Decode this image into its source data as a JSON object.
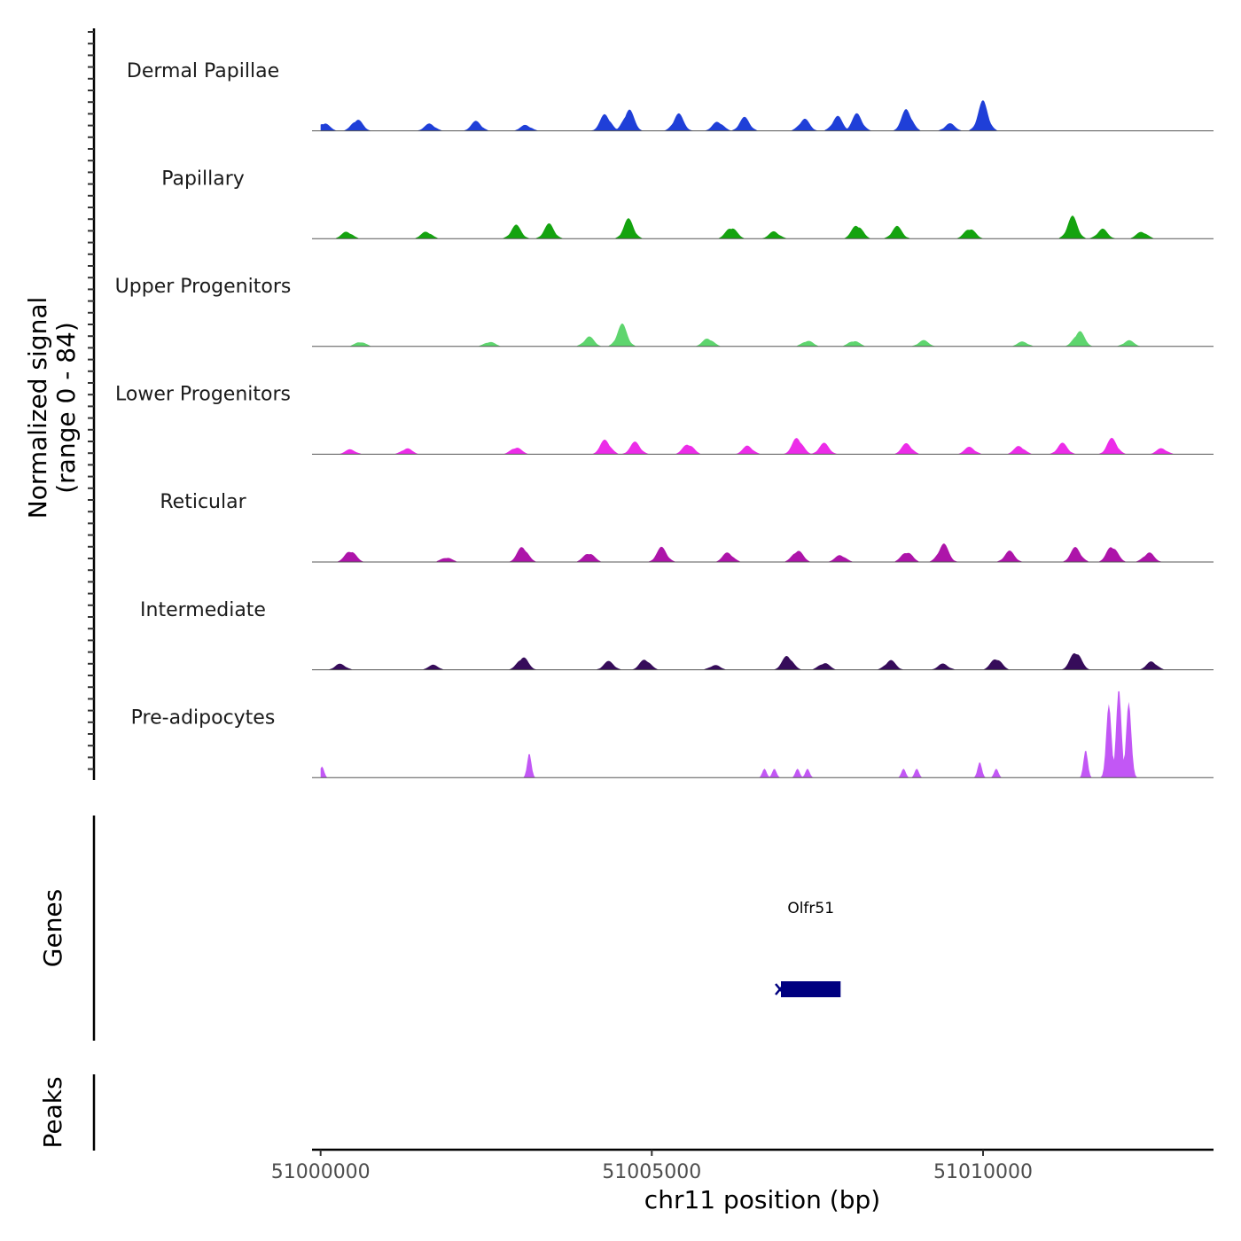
{
  "chart_data": {
    "type": "area",
    "title": "",
    "ylabel_line1": "Normalized signal",
    "ylabel_line2": "(range 0 - 84)",
    "xlabel": "chr11 position (bp)",
    "xlim": [
      50999870,
      51013480
    ],
    "ylim": [
      0,
      84
    ],
    "xticks": [
      51000000,
      51005000,
      51010000
    ],
    "xtick_labels": [
      "51000000",
      "51005000",
      "51010000"
    ],
    "tracks": [
      {
        "name": "Dermal Papillae",
        "color": "#1f3fd8",
        "peaks": [
          [
            51000050,
            7
          ],
          [
            51000550,
            10
          ],
          [
            51001650,
            6
          ],
          [
            51002350,
            8
          ],
          [
            51003100,
            5
          ],
          [
            51004300,
            14
          ],
          [
            51004650,
            18
          ],
          [
            51005400,
            14
          ],
          [
            51006000,
            8
          ],
          [
            51006400,
            11
          ],
          [
            51007300,
            10
          ],
          [
            51007800,
            12
          ],
          [
            51008100,
            14
          ],
          [
            51008850,
            18
          ],
          [
            51009500,
            6
          ],
          [
            51010000,
            24
          ]
        ]
      },
      {
        "name": "Papillary",
        "color": "#14a30f",
        "peaks": [
          [
            51000400,
            6
          ],
          [
            51001600,
            6
          ],
          [
            51002950,
            11
          ],
          [
            51003450,
            12
          ],
          [
            51004650,
            16
          ],
          [
            51006200,
            10
          ],
          [
            51006850,
            6
          ],
          [
            51008100,
            12
          ],
          [
            51008700,
            10
          ],
          [
            51009800,
            9
          ],
          [
            51011350,
            18
          ],
          [
            51011800,
            8
          ],
          [
            51012400,
            6
          ]
        ]
      },
      {
        "name": "Upper Progenitors",
        "color": "#5ed56e",
        "peaks": [
          [
            51000600,
            4
          ],
          [
            51002550,
            4
          ],
          [
            51004050,
            8
          ],
          [
            51004550,
            18
          ],
          [
            51005850,
            7
          ],
          [
            51007350,
            5
          ],
          [
            51008050,
            5
          ],
          [
            51009100,
            5
          ],
          [
            51010600,
            4
          ],
          [
            51011450,
            13
          ],
          [
            51012200,
            5
          ]
        ]
      },
      {
        "name": "Lower Progenitors",
        "color": "#ec2ce8",
        "peaks": [
          [
            51000450,
            4
          ],
          [
            51001300,
            5
          ],
          [
            51002950,
            6
          ],
          [
            51004300,
            12
          ],
          [
            51004750,
            10
          ],
          [
            51005550,
            9
          ],
          [
            51006450,
            7
          ],
          [
            51007200,
            14
          ],
          [
            51007600,
            9
          ],
          [
            51008850,
            9
          ],
          [
            51009800,
            6
          ],
          [
            51010550,
            7
          ],
          [
            51011200,
            9
          ],
          [
            51011950,
            13
          ],
          [
            51012700,
            5
          ]
        ]
      },
      {
        "name": "Reticular",
        "color": "#ad14a9",
        "peaks": [
          [
            51000450,
            10
          ],
          [
            51001900,
            4
          ],
          [
            51003050,
            13
          ],
          [
            51004050,
            8
          ],
          [
            51005150,
            12
          ],
          [
            51006150,
            8
          ],
          [
            51007200,
            10
          ],
          [
            51007850,
            6
          ],
          [
            51008850,
            9
          ],
          [
            51009400,
            15
          ],
          [
            51010400,
            9
          ],
          [
            51011400,
            12
          ],
          [
            51011950,
            14
          ],
          [
            51012500,
            8
          ]
        ]
      },
      {
        "name": "Intermediate",
        "color": "#360c5a",
        "peaks": [
          [
            51000300,
            5
          ],
          [
            51001700,
            4
          ],
          [
            51003050,
            11
          ],
          [
            51004350,
            7
          ],
          [
            51004900,
            9
          ],
          [
            51005950,
            4
          ],
          [
            51007050,
            12
          ],
          [
            51007600,
            6
          ],
          [
            51008600,
            8
          ],
          [
            51009400,
            5
          ],
          [
            51010200,
            10
          ],
          [
            51011400,
            16
          ],
          [
            51012550,
            7
          ]
        ]
      },
      {
        "name": "Pre-adipocytes",
        "color": "#c257f5",
        "peaks": [
          [
            51000020,
            10
          ],
          [
            51003150,
            22
          ],
          [
            51006700,
            8
          ],
          [
            51006850,
            8
          ],
          [
            51007200,
            8
          ],
          [
            51007350,
            8
          ],
          [
            51008800,
            8
          ],
          [
            51009000,
            8
          ],
          [
            51009950,
            14
          ],
          [
            51010200,
            8
          ],
          [
            51011550,
            25
          ],
          [
            51011900,
            66
          ],
          [
            51012050,
            80
          ],
          [
            51012200,
            68
          ]
        ]
      }
    ]
  },
  "genes_track": {
    "label": "Genes",
    "gene": {
      "name": "Olfr51",
      "start": 51006950,
      "end": 51007850,
      "strand": "-",
      "color": "#000080"
    }
  },
  "peaks_track": {
    "label": "Peaks"
  }
}
